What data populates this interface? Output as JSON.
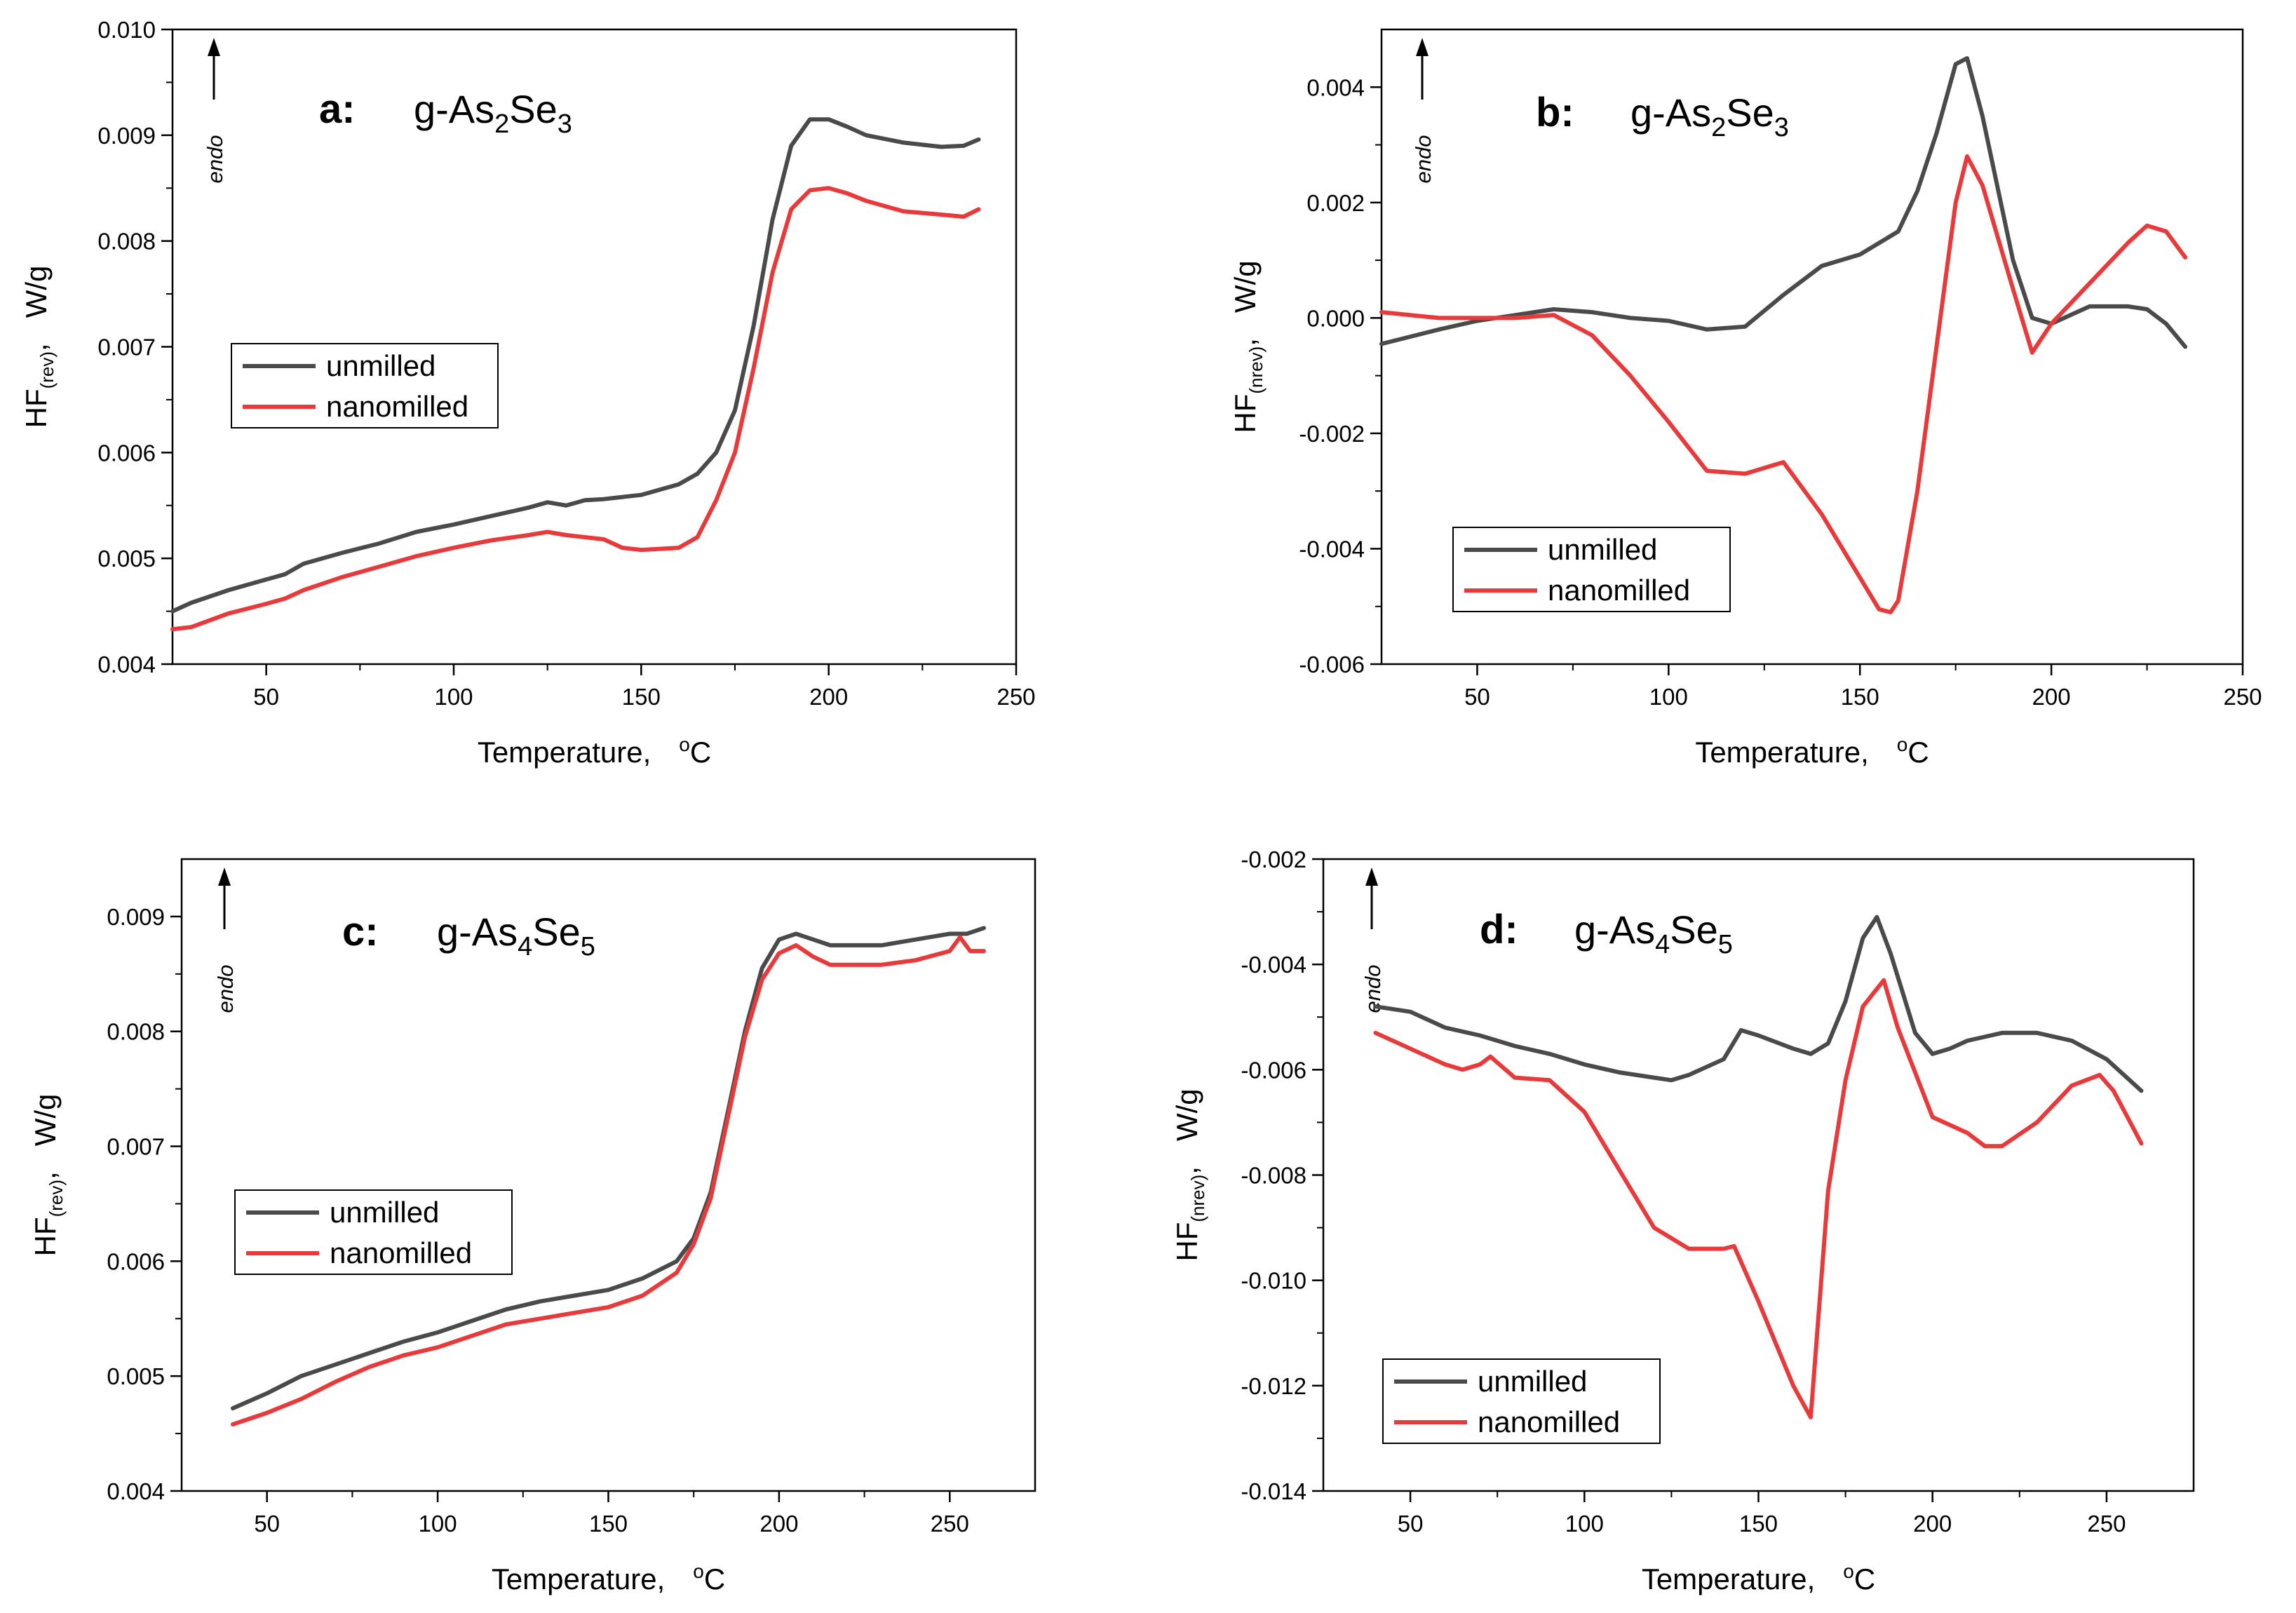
{
  "chart_data": [
    {
      "id": "a",
      "type": "line",
      "panel_letter": "a:",
      "title_prefix": "g-As",
      "title_sub1": "2",
      "title_mid": "Se",
      "title_sub2": "3",
      "endo_label": "endo",
      "xlabel": "Temperature,",
      "xunit_sup": "o",
      "xunit": "C",
      "ylabel_main": "HF",
      "ylabel_sub": "(rev)",
      "ylabel_unit": "W/g",
      "xlim": [
        25,
        250
      ],
      "ylim": [
        0.004,
        0.01
      ],
      "xticks": [
        50,
        100,
        150,
        200,
        250
      ],
      "xticklabels": [
        "50",
        "100",
        "150",
        "200",
        "250"
      ],
      "yticks": [
        0.004,
        0.005,
        0.006,
        0.007,
        0.008,
        0.009,
        0.01
      ],
      "yticklabels": [
        "0.004",
        "0.005",
        "0.006",
        "0.007",
        "0.008",
        "0.009",
        "0.010"
      ],
      "legend_position": "middle-left",
      "series": [
        {
          "name": "unmilled",
          "color": "#4a4a4a",
          "x": [
            25,
            30,
            40,
            50,
            55,
            60,
            70,
            80,
            90,
            100,
            110,
            120,
            125,
            130,
            135,
            140,
            150,
            160,
            165,
            170,
            175,
            180,
            185,
            190,
            195,
            200,
            205,
            210,
            220,
            230,
            236,
            240
          ],
          "y": [
            0.0045,
            0.00458,
            0.0047,
            0.0048,
            0.00485,
            0.00495,
            0.00505,
            0.00514,
            0.00525,
            0.00532,
            0.0054,
            0.00548,
            0.00553,
            0.0055,
            0.00555,
            0.00556,
            0.0056,
            0.0057,
            0.0058,
            0.006,
            0.0064,
            0.0072,
            0.0082,
            0.0089,
            0.00915,
            0.00915,
            0.00908,
            0.009,
            0.00893,
            0.00889,
            0.0089,
            0.00896
          ]
        },
        {
          "name": "nanomilled",
          "color": "#e8393b",
          "x": [
            25,
            30,
            40,
            50,
            55,
            60,
            70,
            80,
            90,
            100,
            110,
            120,
            125,
            130,
            140,
            145,
            150,
            160,
            165,
            170,
            175,
            180,
            185,
            190,
            195,
            200,
            205,
            210,
            220,
            230,
            236,
            240
          ],
          "y": [
            0.00433,
            0.00435,
            0.00448,
            0.00457,
            0.00462,
            0.0047,
            0.00482,
            0.00492,
            0.00502,
            0.0051,
            0.00517,
            0.00522,
            0.00525,
            0.00522,
            0.00518,
            0.0051,
            0.00508,
            0.0051,
            0.0052,
            0.00555,
            0.006,
            0.0068,
            0.0077,
            0.0083,
            0.00848,
            0.0085,
            0.00845,
            0.00838,
            0.00828,
            0.00825,
            0.00823,
            0.0083
          ]
        }
      ]
    },
    {
      "id": "b",
      "type": "line",
      "panel_letter": "b:",
      "title_prefix": "g-As",
      "title_sub1": "2",
      "title_mid": "Se",
      "title_sub2": "3",
      "endo_label": "endo",
      "xlabel": "Temperature,",
      "xunit_sup": "o",
      "xunit": "C",
      "ylabel_main": "HF",
      "ylabel_sub": "(nrev)",
      "ylabel_unit": "W/g",
      "xlim": [
        25,
        250
      ],
      "ylim": [
        -0.006,
        0.005
      ],
      "xticks": [
        50,
        100,
        150,
        200,
        250
      ],
      "xticklabels": [
        "50",
        "100",
        "150",
        "200",
        "250"
      ],
      "yticks": [
        -0.006,
        -0.004,
        -0.002,
        0.0,
        0.002,
        0.004
      ],
      "yticklabels": [
        "-0.006",
        "-0.004",
        "-0.002",
        "0.000",
        "0.002",
        "0.004"
      ],
      "legend_position": "lower-left",
      "series": [
        {
          "name": "unmilled",
          "color": "#4a4a4a",
          "x": [
            25,
            40,
            50,
            60,
            70,
            80,
            90,
            100,
            110,
            120,
            130,
            140,
            150,
            160,
            165,
            170,
            175,
            178,
            182,
            190,
            195,
            200,
            210,
            220,
            225,
            230,
            235
          ],
          "y": [
            -0.00045,
            -0.0002,
            -5e-05,
            5e-05,
            0.00015,
            0.0001,
            0.0,
            -5e-05,
            -0.0002,
            -0.00015,
            0.0004,
            0.0009,
            0.0011,
            0.0015,
            0.0022,
            0.0032,
            0.0044,
            0.0045,
            0.0035,
            0.001,
            0.0,
            -0.0001,
            0.0002,
            0.0002,
            0.00015,
            -0.0001,
            -0.0005
          ]
        },
        {
          "name": "nanomilled",
          "color": "#e8393b",
          "x": [
            25,
            40,
            50,
            60,
            70,
            80,
            90,
            100,
            110,
            120,
            130,
            140,
            150,
            155,
            158,
            160,
            165,
            170,
            175,
            178,
            182,
            190,
            195,
            200,
            210,
            220,
            225,
            230,
            235
          ],
          "y": [
            0.0001,
            0.0,
            0.0,
            0.0,
            5e-05,
            -0.0003,
            -0.001,
            -0.0018,
            -0.00265,
            -0.0027,
            -0.0025,
            -0.0034,
            -0.0045,
            -0.00505,
            -0.0051,
            -0.0049,
            -0.003,
            -0.0005,
            0.002,
            0.0028,
            0.0023,
            0.0005,
            -0.0006,
            -0.0001,
            0.0006,
            0.0013,
            0.0016,
            0.0015,
            0.00105
          ]
        }
      ]
    },
    {
      "id": "c",
      "type": "line",
      "panel_letter": "c:",
      "title_prefix": "g-As",
      "title_sub1": "4",
      "title_mid": "Se",
      "title_sub2": "5",
      "endo_label": "endo",
      "xlabel": "Temperature,",
      "xunit_sup": "o",
      "xunit": "C",
      "ylabel_main": "HF",
      "ylabel_sub": "(rev)",
      "ylabel_unit": "W/g",
      "xlim": [
        25,
        275
      ],
      "ylim": [
        0.004,
        0.0095
      ],
      "xticks": [
        50,
        100,
        150,
        200,
        250
      ],
      "xticklabels": [
        "50",
        "100",
        "150",
        "200",
        "250"
      ],
      "yticks": [
        0.004,
        0.005,
        0.006,
        0.007,
        0.008,
        0.009
      ],
      "yticklabels": [
        "0.004",
        "0.005",
        "0.006",
        "0.007",
        "0.008",
        "0.009"
      ],
      "legend_position": "middle-left",
      "series": [
        {
          "name": "unmilled",
          "color": "#4a4a4a",
          "x": [
            40,
            50,
            60,
            70,
            80,
            90,
            100,
            110,
            120,
            130,
            140,
            150,
            160,
            170,
            175,
            180,
            185,
            190,
            195,
            200,
            205,
            210,
            215,
            220,
            230,
            240,
            250,
            255,
            260
          ],
          "y": [
            0.00472,
            0.00485,
            0.005,
            0.0051,
            0.0052,
            0.0053,
            0.00538,
            0.00548,
            0.00558,
            0.00565,
            0.0057,
            0.00575,
            0.00585,
            0.006,
            0.0062,
            0.0066,
            0.0073,
            0.008,
            0.00855,
            0.0088,
            0.00885,
            0.0088,
            0.00875,
            0.00875,
            0.00875,
            0.0088,
            0.00885,
            0.00885,
            0.0089
          ]
        },
        {
          "name": "nanomilled",
          "color": "#e8393b",
          "x": [
            40,
            50,
            60,
            70,
            80,
            90,
            100,
            110,
            120,
            130,
            140,
            150,
            160,
            170,
            175,
            180,
            185,
            190,
            195,
            200,
            205,
            210,
            215,
            220,
            230,
            240,
            250,
            253,
            256,
            260
          ],
          "y": [
            0.00458,
            0.00468,
            0.0048,
            0.00495,
            0.00508,
            0.00518,
            0.00525,
            0.00535,
            0.00545,
            0.0055,
            0.00555,
            0.0056,
            0.0057,
            0.0059,
            0.00615,
            0.00655,
            0.00725,
            0.00795,
            0.00845,
            0.00868,
            0.00875,
            0.00865,
            0.00858,
            0.00858,
            0.00858,
            0.00862,
            0.0087,
            0.00882,
            0.0087,
            0.0087
          ]
        }
      ]
    },
    {
      "id": "d",
      "type": "line",
      "panel_letter": "d:",
      "title_prefix": "g-As",
      "title_sub1": "4",
      "title_mid": "Se",
      "title_sub2": "5",
      "endo_label": "endo",
      "xlabel": "Temperature,",
      "xunit_sup": "o",
      "xunit": "C",
      "ylabel_main": "HF",
      "ylabel_sub": "(nrev)",
      "ylabel_unit": "W/g",
      "xlim": [
        25,
        275
      ],
      "ylim": [
        -0.014,
        -0.002
      ],
      "xticks": [
        50,
        100,
        150,
        200,
        250
      ],
      "xticklabels": [
        "50",
        "100",
        "150",
        "200",
        "250"
      ],
      "yticks": [
        -0.014,
        -0.012,
        -0.01,
        -0.008,
        -0.006,
        -0.004,
        -0.002
      ],
      "yticklabels": [
        "-0.014",
        "-0.012",
        "-0.010",
        "-0.008",
        "-0.006",
        "-0.004",
        "-0.002"
      ],
      "legend_position": "lower-left",
      "series": [
        {
          "name": "unmilled",
          "color": "#4a4a4a",
          "x": [
            40,
            50,
            60,
            70,
            80,
            90,
            100,
            110,
            120,
            125,
            130,
            140,
            145,
            150,
            160,
            165,
            170,
            175,
            180,
            184,
            188,
            195,
            200,
            205,
            210,
            220,
            230,
            240,
            250,
            260
          ],
          "y": [
            -0.0048,
            -0.0049,
            -0.0052,
            -0.00535,
            -0.00555,
            -0.0057,
            -0.0059,
            -0.00605,
            -0.00615,
            -0.0062,
            -0.0061,
            -0.0058,
            -0.00525,
            -0.00535,
            -0.0056,
            -0.0057,
            -0.0055,
            -0.0047,
            -0.0035,
            -0.0031,
            -0.0038,
            -0.0053,
            -0.0057,
            -0.0056,
            -0.00545,
            -0.0053,
            -0.0053,
            -0.00545,
            -0.0058,
            -0.0064
          ]
        },
        {
          "name": "nanomilled",
          "color": "#e8393b",
          "x": [
            40,
            50,
            60,
            65,
            70,
            73,
            80,
            90,
            100,
            110,
            120,
            130,
            140,
            143,
            150,
            155,
            160,
            165,
            170,
            175,
            180,
            186,
            190,
            200,
            210,
            215,
            220,
            230,
            240,
            248,
            252,
            256,
            260
          ],
          "y": [
            -0.0053,
            -0.0056,
            -0.0059,
            -0.006,
            -0.0059,
            -0.00575,
            -0.00615,
            -0.0062,
            -0.0068,
            -0.0079,
            -0.009,
            -0.0094,
            -0.0094,
            -0.00935,
            -0.0104,
            -0.0112,
            -0.012,
            -0.0126,
            -0.0083,
            -0.0062,
            -0.0048,
            -0.0043,
            -0.0052,
            -0.0069,
            -0.0072,
            -0.00745,
            -0.00745,
            -0.007,
            -0.0063,
            -0.0061,
            -0.0064,
            -0.0069,
            -0.0074
          ]
        }
      ]
    }
  ]
}
